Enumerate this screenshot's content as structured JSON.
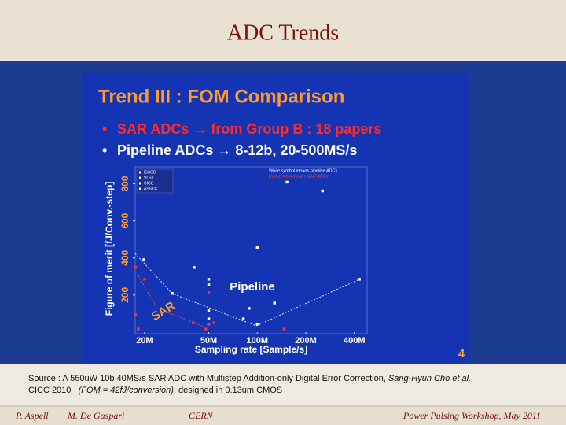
{
  "header": {
    "title": "ADC Trends"
  },
  "slide": {
    "title": "Trend III : FOM Comparison",
    "bullets": [
      "SAR ADCs → from Group B : 18 papers",
      "Pipeline ADCs → 8-12b, 20-500MS/s"
    ],
    "page_number": "4"
  },
  "chart_data": {
    "type": "scatter",
    "xlabel": "Sampling rate [Sample/s]",
    "ylabel": "Figure of merit [fJ/Conv.-step]",
    "xscale": "log",
    "xlim": [
      17500000,
      480000000
    ],
    "ylim": [
      0,
      900
    ],
    "xticks": [
      {
        "value": 20000000,
        "label": "20M"
      },
      {
        "value": 50000000,
        "label": "50M"
      },
      {
        "value": 100000000,
        "label": "100M"
      },
      {
        "value": 200000000,
        "label": "200M"
      },
      {
        "value": 400000000,
        "label": "400M"
      }
    ],
    "yticks": [
      200,
      400,
      600,
      800
    ],
    "legend": [
      "ISSCC",
      "VLSI",
      "CICC",
      "ASSCC"
    ],
    "annotations": [
      "White symbol means pipeline ADCs",
      "Red symbol means SAR ADCs"
    ],
    "series": [
      {
        "name": "Pipeline",
        "color": "#ffffff",
        "x": [
          19800000,
          40600000,
          50000000,
          50000000,
          50000000,
          50000000,
          50000000,
          29700000,
          89000000,
          100000000,
          128000000,
          153000000,
          254000000,
          430000000,
          100000000,
          82000000
        ],
        "values": [
          391,
          349,
          285,
          255,
          115,
          72,
          43,
          209,
          128,
          455,
          157,
          809,
          762,
          285,
          43,
          72
        ]
      },
      {
        "name": "SAR",
        "color": "#ff3030",
        "x": [
          17600000,
          20000000,
          17600000,
          18300000,
          40000000,
          48000000,
          50000000,
          54000000,
          147000000,
          50000000
        ],
        "values": [
          349,
          285,
          94,
          17,
          51,
          17,
          43,
          51,
          17,
          213
        ]
      }
    ]
  },
  "source": {
    "line1": "Source : A 550uW 10b 40MS/s SAR ADC with Multistep Addition-only Digital Error Correction, ",
    "authors": "Sang-Hyun Cho et al.",
    "venue": "CICC 2010   ",
    "fom": "(FOM = 42fJ/conversion)",
    "process": "  designed in 0.13um CMOS"
  },
  "footer": {
    "author": "P. Aspell",
    "coauthor": "M. De Gaspari",
    "org": "CERN",
    "event": "Power Pulsing Workshop, May 2011"
  }
}
